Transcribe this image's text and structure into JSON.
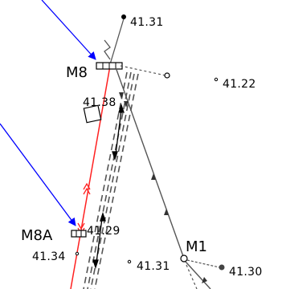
{
  "colors": {
    "background": "#ffffff",
    "ink": "#000000",
    "line_grey": "#555555",
    "pipe_red": "#ff2020",
    "leader_blue": "#0000ff"
  },
  "stations": {
    "m8": "M8",
    "m8a": "M8A",
    "m1": "M1"
  },
  "elevations": {
    "e1": "41.31",
    "e2": "41.22",
    "e3": "41.38",
    "e4": "41.29",
    "e5": "41.34",
    "e6": "41.31",
    "e7": "41.30"
  },
  "symbols": {
    "spot_height": "small-open-circle-icon",
    "manhole": "square-with-cross-bars-icon",
    "flow": "double-arrow-icon",
    "break": "zigzag-break-icon",
    "inspection_box": "rotated-square-icon"
  }
}
